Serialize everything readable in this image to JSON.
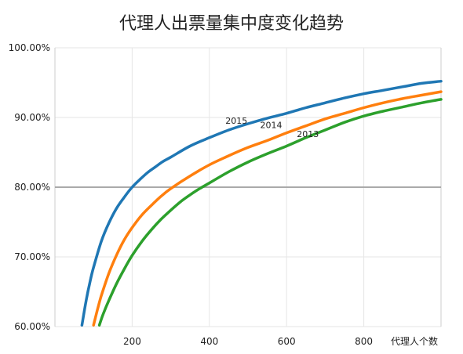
{
  "chart_data": {
    "type": "line",
    "title": "代理人出票量集中度变化趋势",
    "xlabel": "代理人个数",
    "ylabel": "",
    "xlim": [
      0,
      1000
    ],
    "ylim": [
      60,
      100
    ],
    "x_ticks": [
      200,
      400,
      600,
      800
    ],
    "y_ticks": [
      60,
      70,
      80,
      90,
      100
    ],
    "y_tick_labels": [
      "60.00%",
      "70.00%",
      "80.00%",
      "90.00%",
      "100.00%"
    ],
    "reference_line": {
      "y": 80,
      "color": "#aaaaaa"
    },
    "grid": true,
    "series": [
      {
        "name": "2015",
        "color": "#1f77b4",
        "label_at": [
          470,
          89.1
        ],
        "x": [
          70,
          80,
          90,
          100,
          120,
          140,
          160,
          180,
          200,
          220,
          240,
          260,
          280,
          300,
          350,
          400,
          450,
          500,
          550,
          600,
          650,
          700,
          750,
          800,
          850,
          900,
          950,
          1000
        ],
        "y": [
          60.2,
          63.5,
          66.2,
          68.5,
          72.2,
          74.9,
          77.0,
          78.6,
          80.0,
          81.1,
          82.1,
          82.9,
          83.7,
          84.3,
          85.9,
          87.1,
          88.2,
          89.1,
          89.9,
          90.6,
          91.4,
          92.1,
          92.8,
          93.4,
          93.9,
          94.4,
          94.9,
          95.2
        ]
      },
      {
        "name": "2014",
        "color": "#ff7f0e",
        "label_at": [
          560,
          88.5
        ],
        "x": [
          100,
          110,
          120,
          140,
          160,
          180,
          200,
          225,
          250,
          275,
          300,
          350,
          400,
          450,
          500,
          550,
          600,
          650,
          700,
          750,
          800,
          850,
          900,
          950,
          1000
        ],
        "y": [
          60.2,
          62.4,
          64.4,
          67.7,
          70.3,
          72.5,
          74.2,
          76.0,
          77.4,
          78.7,
          79.8,
          81.6,
          83.2,
          84.5,
          85.7,
          86.7,
          87.8,
          88.8,
          89.8,
          90.6,
          91.4,
          92.1,
          92.7,
          93.2,
          93.7
        ]
      },
      {
        "name": "2013",
        "color": "#2ca02c",
        "label_at": [
          655,
          87.2
        ],
        "x": [
          115,
          125,
          140,
          160,
          180,
          200,
          225,
          250,
          275,
          300,
          325,
          350,
          375,
          400,
          450,
          500,
          550,
          600,
          650,
          700,
          750,
          800,
          850,
          900,
          950,
          1000
        ],
        "y": [
          60.2,
          61.8,
          63.8,
          66.2,
          68.3,
          70.2,
          72.2,
          73.9,
          75.4,
          76.7,
          77.9,
          78.9,
          79.8,
          80.6,
          82.2,
          83.6,
          84.8,
          85.9,
          87.1,
          88.2,
          89.3,
          90.2,
          90.9,
          91.5,
          92.1,
          92.6
        ]
      }
    ]
  }
}
